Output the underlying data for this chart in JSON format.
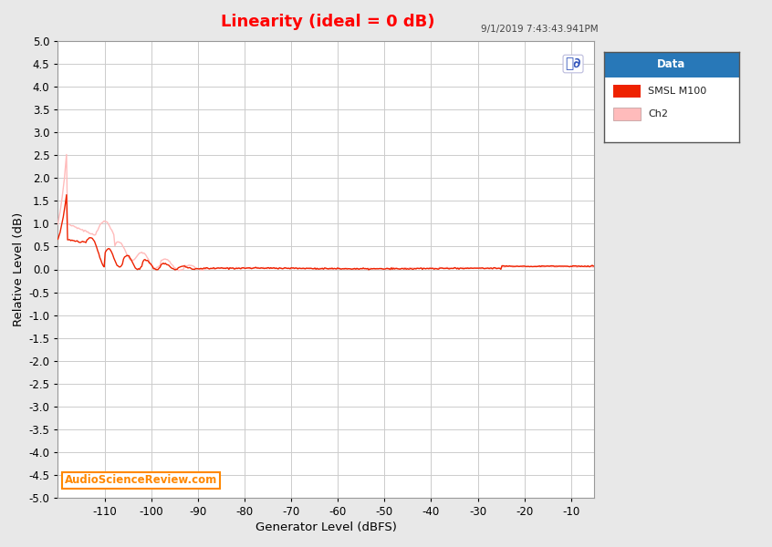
{
  "title": "Linearity (ideal = 0 dB)",
  "title_color": "#FF0000",
  "xlabel": "Generator Level (dBFS)",
  "ylabel": "Relative Level (dB)",
  "xlim": [
    -120,
    -5
  ],
  "ylim": [
    -5.0,
    5.0
  ],
  "xticks": [
    -110,
    -100,
    -90,
    -80,
    -70,
    -60,
    -50,
    -40,
    -30,
    -20,
    -10
  ],
  "yticks": [
    -5.0,
    -4.5,
    -4.0,
    -3.5,
    -3.0,
    -2.5,
    -2.0,
    -1.5,
    -1.0,
    -0.5,
    0.0,
    0.5,
    1.0,
    1.5,
    2.0,
    2.5,
    3.0,
    3.5,
    4.0,
    4.5,
    5.0
  ],
  "timestamp": "9/1/2019 7:43:43.941PM",
  "watermark": "AudioScienceReview.com",
  "legend_title": "Data",
  "legend_title_bg": "#2878B8",
  "series1_label": "SMSL M100",
  "series1_color": "#EE2200",
  "series2_label": "Ch2",
  "series2_color": "#FFBBBB",
  "bg_color": "#E8E8E8",
  "plot_bg_color": "#FFFFFF",
  "grid_color": "#CCCCCC",
  "ap_logo_color": "#3355BB"
}
